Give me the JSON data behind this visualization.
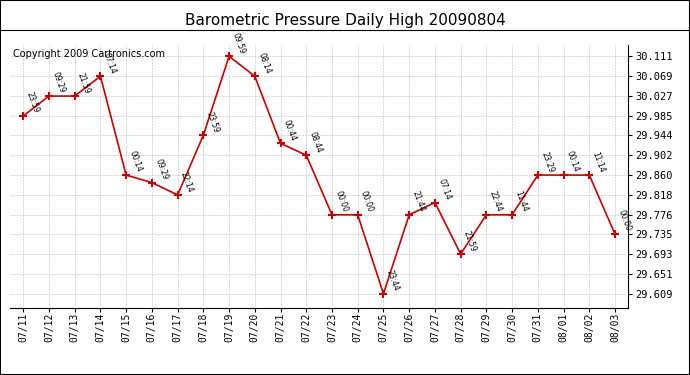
{
  "title": "Barometric Pressure Daily High 20090804",
  "copyright": "Copyright 2009 Cartronics.com",
  "x_labels": [
    "07/11",
    "07/12",
    "07/13",
    "07/14",
    "07/15",
    "07/16",
    "07/17",
    "07/18",
    "07/19",
    "07/20",
    "07/21",
    "07/22",
    "07/23",
    "07/24",
    "07/25",
    "07/26",
    "07/27",
    "07/28",
    "07/29",
    "07/30",
    "07/31",
    "08/01",
    "08/02",
    "08/03"
  ],
  "y_values": [
    29.985,
    30.027,
    30.027,
    30.069,
    29.86,
    29.844,
    29.818,
    29.944,
    30.111,
    30.069,
    29.927,
    29.902,
    29.776,
    29.776,
    29.609,
    29.776,
    29.802,
    29.693,
    29.776,
    29.776,
    29.86,
    29.86,
    29.86,
    29.735
  ],
  "point_labels": [
    "23:59",
    "09:29",
    "21:59",
    "07:14",
    "00:14",
    "09:29",
    "22:14",
    "23:59",
    "09:59",
    "08:14",
    "00:44",
    "08:44",
    "00:00",
    "00:00",
    "23:44",
    "21:44",
    "07:14",
    "21:59",
    "22:44",
    "11:44",
    "23:29",
    "00:14",
    "11:14",
    "00:00"
  ],
  "y_ticks": [
    29.609,
    29.651,
    29.693,
    29.735,
    29.776,
    29.818,
    29.86,
    29.902,
    29.944,
    29.985,
    30.027,
    30.069,
    30.111
  ],
  "y_min": 29.58,
  "y_max": 30.135,
  "line_color": "#cc0000",
  "marker_color": "#cc0000",
  "bg_color": "#ffffff",
  "grid_color": "#bbbbbb",
  "title_fontsize": 11,
  "copyright_fontsize": 7,
  "xlabel_fontsize": 7,
  "ylabel_fontsize": 7.5
}
